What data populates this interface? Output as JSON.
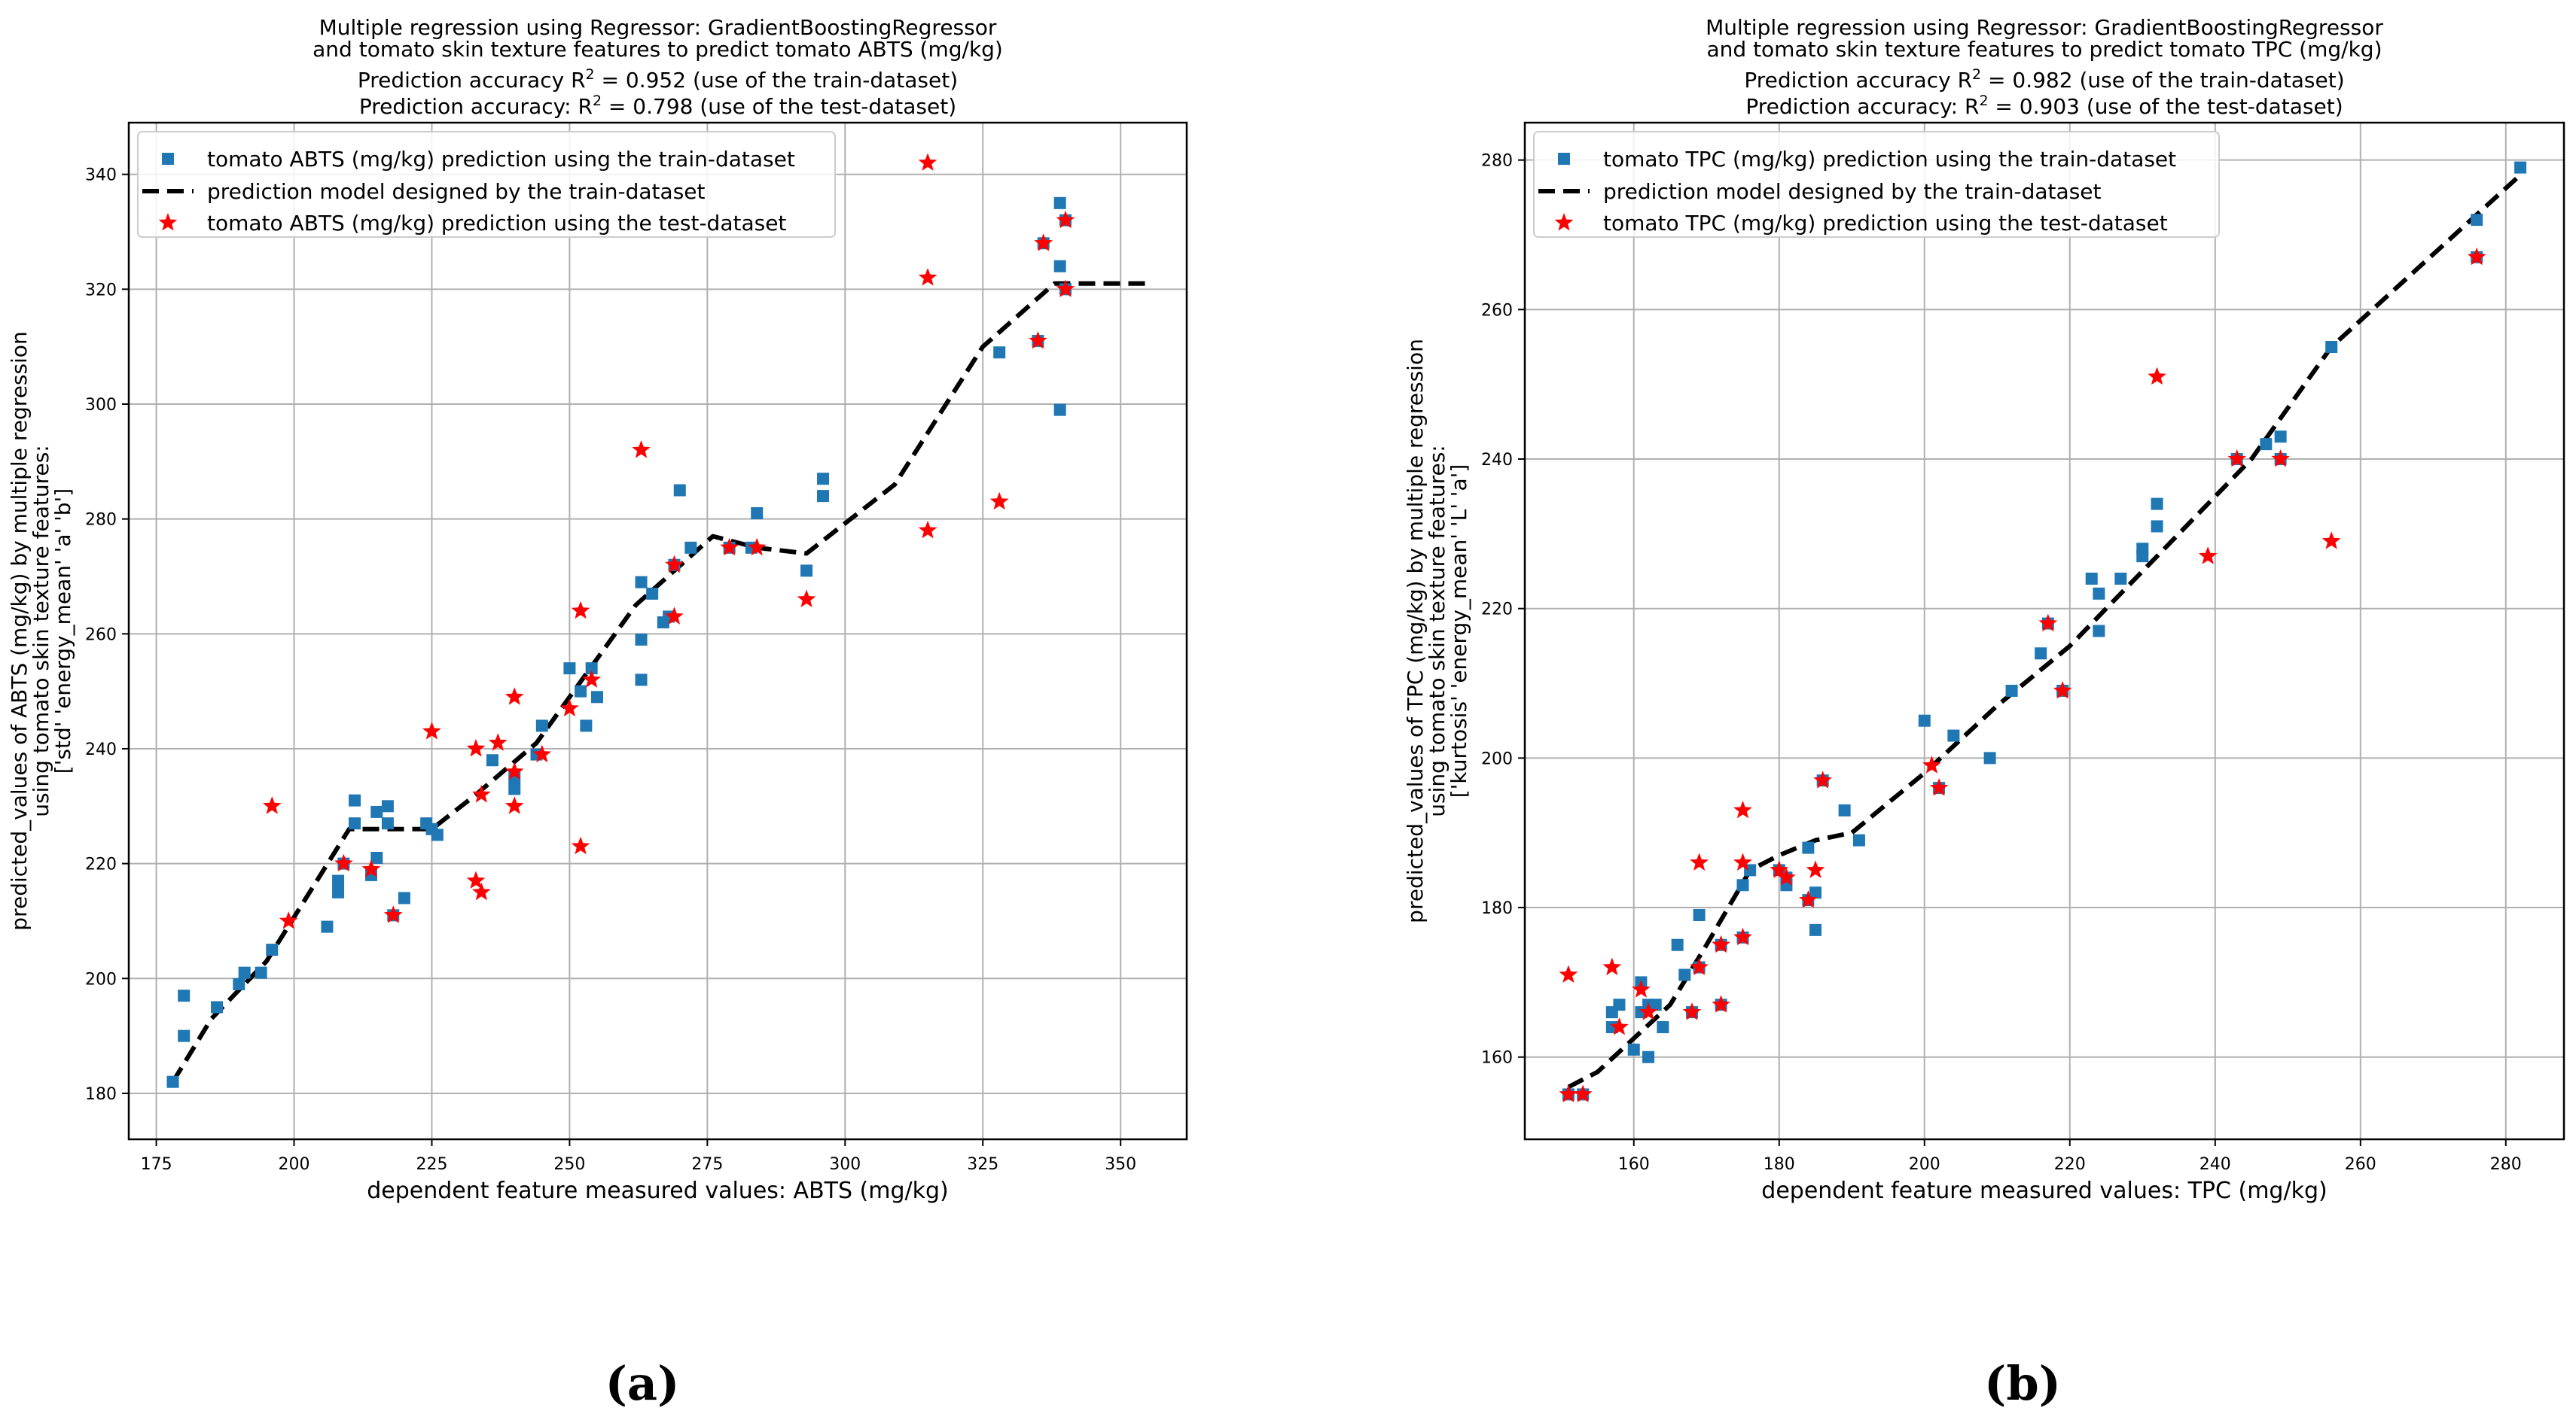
{
  "colors": {
    "train": "#1f77b4",
    "test": "#ff0000",
    "model": "#000000",
    "grid": "#b0b0b0"
  },
  "chart_data": [
    {
      "type": "scatter",
      "panel_label": "(a)",
      "title_lines": [
        "Multiple regression using Regressor: GradientBoostingRegressor",
        "and tomato skin texture features to predict tomato ABTS (mg/kg)"
      ],
      "r2_lines": [
        {
          "pre": "Prediction accuracy R",
          "post": " = 0.952 (use of the train-dataset)"
        },
        {
          "pre": "Prediction accuracy: R",
          "post": " = 0.798 (use of the test-dataset)"
        }
      ],
      "r2_sup": "2",
      "xlabel": "dependent feature measured values: ABTS (mg/kg)",
      "ylabel_lines": [
        "predicted_values of ABTS (mg/kg) by multiple regression",
        "using tomato skin texture features:",
        "['std' 'energy_mean' 'a' 'b']"
      ],
      "xlim": [
        170,
        362
      ],
      "ylim": [
        172,
        349
      ],
      "xticks": [
        175,
        200,
        225,
        250,
        275,
        300,
        325,
        350
      ],
      "yticks": [
        180,
        200,
        220,
        240,
        260,
        280,
        300,
        320,
        340
      ],
      "legend": [
        "tomato ABTS (mg/kg) prediction using the train-dataset",
        "prediction model designed by the train-dataset",
        "tomato ABTS (mg/kg) prediction using the test-dataset"
      ],
      "legend_loc": "upper-left",
      "train": [
        [
          178,
          182
        ],
        [
          180,
          190
        ],
        [
          180,
          197
        ],
        [
          186,
          195
        ],
        [
          190,
          199
        ],
        [
          191,
          201
        ],
        [
          194,
          201
        ],
        [
          196,
          205
        ],
        [
          206,
          209
        ],
        [
          208,
          215
        ],
        [
          208,
          217
        ],
        [
          209,
          220
        ],
        [
          211,
          227
        ],
        [
          211,
          231
        ],
        [
          214,
          218
        ],
        [
          215,
          221
        ],
        [
          215,
          229
        ],
        [
          217,
          230
        ],
        [
          217,
          227
        ],
        [
          218,
          211
        ],
        [
          220,
          214
        ],
        [
          224,
          227
        ],
        [
          225,
          226
        ],
        [
          226,
          225
        ],
        [
          236,
          238
        ],
        [
          240,
          235
        ],
        [
          240,
          233
        ],
        [
          244,
          239
        ],
        [
          245,
          244
        ],
        [
          250,
          254
        ],
        [
          252,
          250
        ],
        [
          253,
          244
        ],
        [
          254,
          254
        ],
        [
          255,
          249
        ],
        [
          263,
          252
        ],
        [
          263,
          259
        ],
        [
          263,
          269
        ],
        [
          265,
          267
        ],
        [
          267,
          262
        ],
        [
          268,
          263
        ],
        [
          269,
          272
        ],
        [
          270,
          285
        ],
        [
          272,
          275
        ],
        [
          279,
          275
        ],
        [
          283,
          275
        ],
        [
          284,
          281
        ],
        [
          293,
          271
        ],
        [
          296,
          287
        ],
        [
          296,
          284
        ],
        [
          328,
          309
        ],
        [
          335,
          311
        ],
        [
          336,
          328
        ],
        [
          339,
          335
        ],
        [
          339,
          324
        ],
        [
          339,
          299
        ],
        [
          340,
          332
        ],
        [
          340,
          320
        ]
      ],
      "test": [
        [
          196,
          230
        ],
        [
          199,
          210
        ],
        [
          209,
          220
        ],
        [
          214,
          219
        ],
        [
          218,
          211
        ],
        [
          225,
          243
        ],
        [
          233,
          240
        ],
        [
          233,
          217
        ],
        [
          234,
          215
        ],
        [
          234,
          232
        ],
        [
          237,
          241
        ],
        [
          240,
          249
        ],
        [
          240,
          230
        ],
        [
          240,
          236
        ],
        [
          245,
          239
        ],
        [
          250,
          247
        ],
        [
          252,
          223
        ],
        [
          252,
          264
        ],
        [
          254,
          252
        ],
        [
          263,
          292
        ],
        [
          269,
          263
        ],
        [
          269,
          272
        ],
        [
          279,
          275
        ],
        [
          284,
          275
        ],
        [
          293,
          266
        ],
        [
          315,
          278
        ],
        [
          315,
          322
        ],
        [
          315,
          342
        ],
        [
          328,
          283
        ],
        [
          335,
          311
        ],
        [
          336,
          328
        ],
        [
          340,
          332
        ],
        [
          340,
          320
        ]
      ],
      "model": [
        [
          178,
          182
        ],
        [
          185,
          193
        ],
        [
          195,
          203
        ],
        [
          210,
          226
        ],
        [
          225,
          226
        ],
        [
          233,
          232
        ],
        [
          244,
          241
        ],
        [
          262,
          265
        ],
        [
          276,
          277
        ],
        [
          284,
          275
        ],
        [
          293,
          274
        ],
        [
          309,
          286
        ],
        [
          325,
          310
        ],
        [
          338,
          321
        ],
        [
          342,
          321
        ],
        [
          355,
          321
        ]
      ]
    },
    {
      "type": "scatter",
      "panel_label": "(b)",
      "title_lines": [
        "Multiple regression using Regressor: GradientBoostingRegressor",
        "and tomato skin texture features to predict tomato TPC (mg/kg)"
      ],
      "r2_lines": [
        {
          "pre": "Prediction accuracy R",
          "post": " = 0.982 (use of the train-dataset)"
        },
        {
          "pre": "Prediction accuracy: R",
          "post": " = 0.903 (use of the test-dataset)"
        }
      ],
      "r2_sup": "2",
      "xlabel": "dependent feature measured values: TPC (mg/kg)",
      "ylabel_lines": [
        "predicted_values of TPC (mg/kg) by multiple regression",
        "using tomato skin texture features:",
        "['kurtosis' 'energy_mean' 'L' 'a']"
      ],
      "xlim": [
        145,
        288
      ],
      "ylim": [
        149,
        285
      ],
      "xticks": [
        160,
        180,
        200,
        220,
        240,
        260,
        280
      ],
      "yticks": [
        160,
        180,
        200,
        220,
        240,
        260,
        280
      ],
      "legend": [
        "tomato TPC (mg/kg) prediction using the train-dataset",
        "prediction model designed by the train-dataset",
        "tomato TPC (mg/kg) prediction using the test-dataset"
      ],
      "legend_loc": "upper-left",
      "train": [
        [
          151,
          155
        ],
        [
          153,
          155
        ],
        [
          157,
          166
        ],
        [
          157,
          164
        ],
        [
          158,
          167
        ],
        [
          160,
          161
        ],
        [
          161,
          166
        ],
        [
          161,
          170
        ],
        [
          162,
          167
        ],
        [
          162,
          160
        ],
        [
          163,
          167
        ],
        [
          164,
          164
        ],
        [
          166,
          175
        ],
        [
          167,
          171
        ],
        [
          168,
          166
        ],
        [
          169,
          172
        ],
        [
          169,
          179
        ],
        [
          172,
          175
        ],
        [
          172,
          167
        ],
        [
          175,
          176
        ],
        [
          175,
          183
        ],
        [
          176,
          185
        ],
        [
          180,
          185
        ],
        [
          181,
          184
        ],
        [
          181,
          183
        ],
        [
          184,
          188
        ],
        [
          184,
          181
        ],
        [
          185,
          182
        ],
        [
          185,
          177
        ],
        [
          186,
          197
        ],
        [
          189,
          193
        ],
        [
          191,
          189
        ],
        [
          200,
          205
        ],
        [
          202,
          196
        ],
        [
          204,
          203
        ],
        [
          209,
          200
        ],
        [
          212,
          209
        ],
        [
          216,
          214
        ],
        [
          217,
          218
        ],
        [
          219,
          209
        ],
        [
          223,
          224
        ],
        [
          224,
          217
        ],
        [
          224,
          222
        ],
        [
          227,
          224
        ],
        [
          230,
          227
        ],
        [
          230,
          228
        ],
        [
          232,
          231
        ],
        [
          232,
          234
        ],
        [
          243,
          240
        ],
        [
          247,
          242
        ],
        [
          249,
          243
        ],
        [
          249,
          240
        ],
        [
          256,
          255
        ],
        [
          276,
          272
        ],
        [
          276,
          267
        ],
        [
          282,
          279
        ]
      ],
      "test": [
        [
          151,
          155
        ],
        [
          151,
          171
        ],
        [
          153,
          155
        ],
        [
          157,
          172
        ],
        [
          158,
          164
        ],
        [
          161,
          169
        ],
        [
          162,
          166
        ],
        [
          168,
          166
        ],
        [
          169,
          172
        ],
        [
          169,
          186
        ],
        [
          172,
          167
        ],
        [
          172,
          175
        ],
        [
          175,
          176
        ],
        [
          175,
          186
        ],
        [
          175,
          193
        ],
        [
          180,
          185
        ],
        [
          181,
          184
        ],
        [
          184,
          181
        ],
        [
          185,
          185
        ],
        [
          186,
          197
        ],
        [
          201,
          199
        ],
        [
          202,
          196
        ],
        [
          217,
          218
        ],
        [
          219,
          209
        ],
        [
          232,
          251
        ],
        [
          239,
          227
        ],
        [
          243,
          240
        ],
        [
          249,
          240
        ],
        [
          256,
          229
        ],
        [
          276,
          267
        ]
      ],
      "model": [
        [
          151,
          156
        ],
        [
          155,
          158
        ],
        [
          165,
          167
        ],
        [
          170,
          175
        ],
        [
          176,
          185
        ],
        [
          180,
          187
        ],
        [
          185,
          189
        ],
        [
          190,
          190
        ],
        [
          200,
          198
        ],
        [
          210,
          207
        ],
        [
          220,
          215
        ],
        [
          232,
          227
        ],
        [
          245,
          240
        ],
        [
          256,
          255
        ],
        [
          282,
          278
        ]
      ]
    }
  ]
}
